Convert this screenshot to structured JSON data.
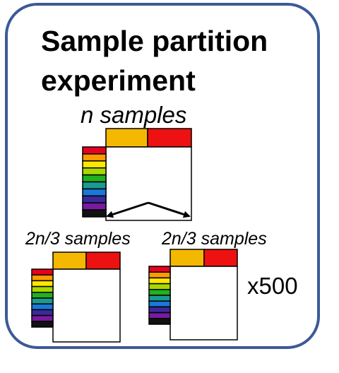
{
  "title": "Sample partition experiment",
  "full_label": "n samples",
  "subset_a_label": "2n/3 samples",
  "subset_b_label": "2n/3 samples",
  "repeat_label": "x500",
  "colors": {
    "border": "#3b5a98",
    "header_left": "#f5b800",
    "header_right": "#ee1111",
    "rows": [
      "#e8001c",
      "#ff9a00",
      "#ffe800",
      "#a8d800",
      "#20b020",
      "#1a9a90",
      "#1a78d8",
      "#3a2a9a",
      "#7a1aa0",
      "#111111"
    ]
  }
}
